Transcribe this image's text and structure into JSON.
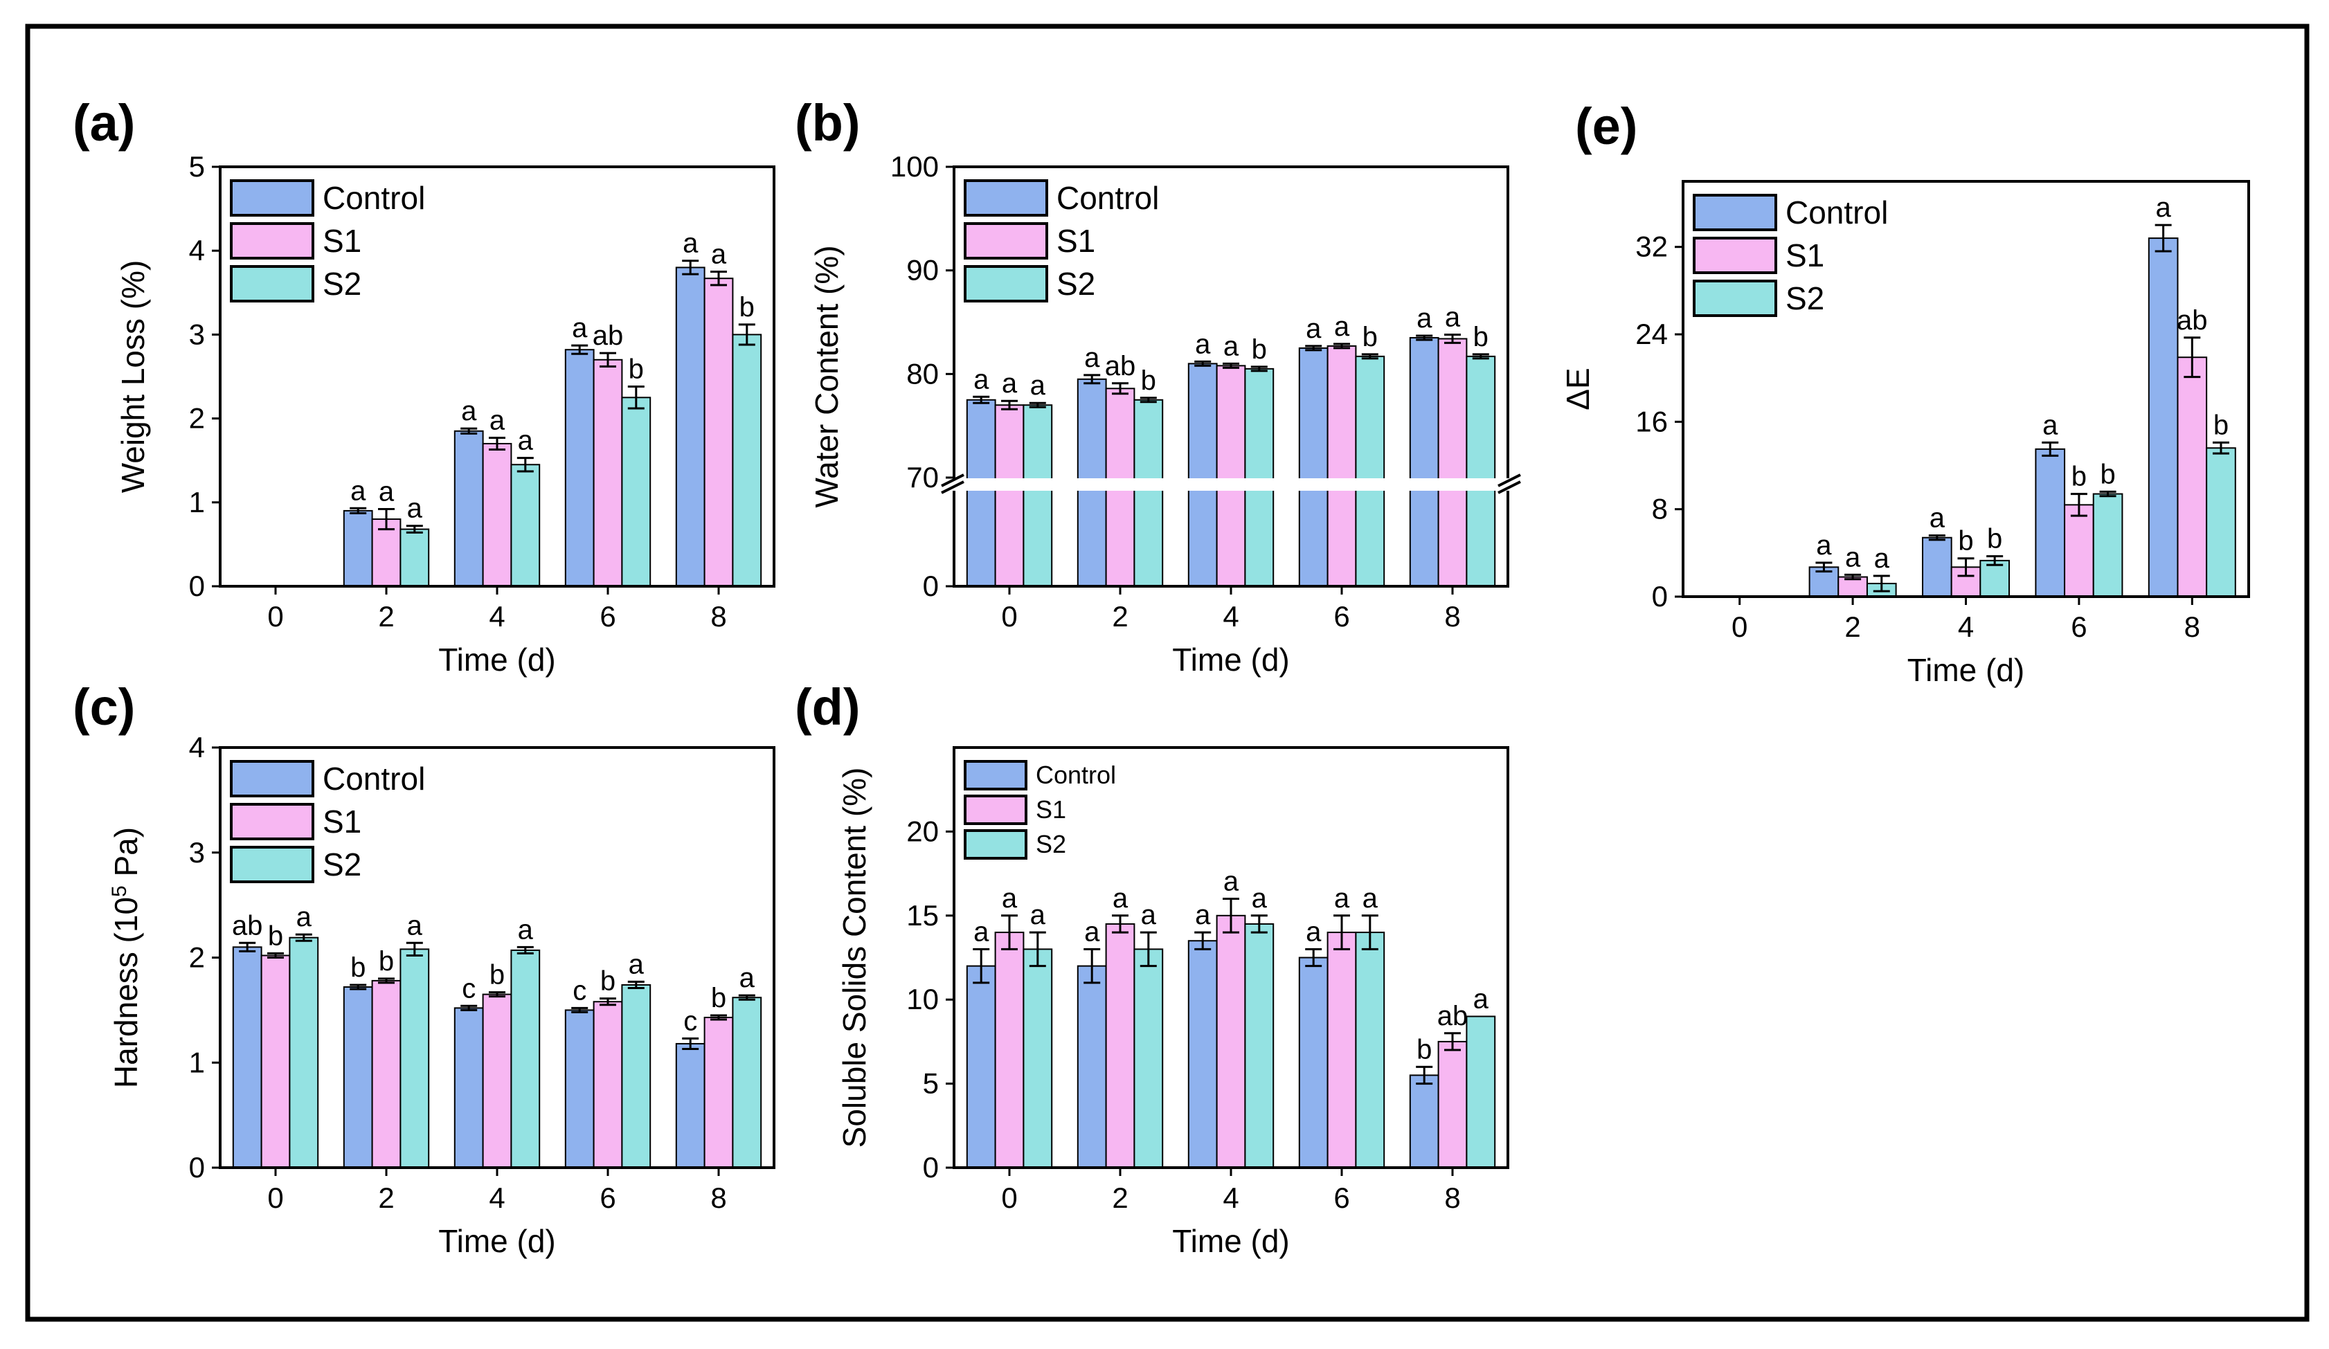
{
  "colors": {
    "control": "#8fb2ee",
    "s1": "#f7b7f2",
    "s2": "#94e2e2",
    "frame": "#000000",
    "background": "#ffffff"
  },
  "chart_data": [
    {
      "id": "a",
      "panel_label": "(a)",
      "type": "bar",
      "xlabel": "Time (d)",
      "ylabel": "Weight Loss (%)",
      "ylim": [
        0,
        5
      ],
      "y_ticks": [
        "0",
        "1",
        "2",
        "3",
        "4",
        "5"
      ],
      "categories": [
        "0",
        "2",
        "4",
        "6",
        "8"
      ],
      "legend_position": "top-left",
      "series": [
        {
          "name": "Control",
          "color_key": "control",
          "values": [
            0,
            0.9,
            1.85,
            2.82,
            3.8
          ],
          "errors": [
            0,
            0.03,
            0.03,
            0.05,
            0.08
          ],
          "letters": [
            "",
            "a",
            "a",
            "a",
            "a"
          ]
        },
        {
          "name": "S1",
          "color_key": "s1",
          "values": [
            0,
            0.8,
            1.7,
            2.7,
            3.67
          ],
          "errors": [
            0,
            0.12,
            0.07,
            0.08,
            0.08
          ],
          "letters": [
            "",
            "a",
            "a",
            "ab",
            "a"
          ]
        },
        {
          "name": "S2",
          "color_key": "s2",
          "values": [
            0,
            0.68,
            1.45,
            2.25,
            3.0
          ],
          "errors": [
            0,
            0.04,
            0.08,
            0.13,
            0.12
          ],
          "letters": [
            "",
            "a",
            "a",
            "b",
            "b"
          ]
        }
      ]
    },
    {
      "id": "b",
      "panel_label": "(b)",
      "type": "bar",
      "xlabel": "Time (d)",
      "ylabel": "Water Content (%)",
      "y_ticks": [
        "0",
        "70",
        "80",
        "90",
        "100"
      ],
      "axis_break": "between 0 and 70",
      "categories": [
        "0",
        "2",
        "4",
        "6",
        "8"
      ],
      "legend_position": "top-left",
      "series": [
        {
          "name": "Control",
          "color_key": "control",
          "values": [
            77.5,
            79.5,
            81.0,
            82.5,
            83.5
          ],
          "errors": [
            0.3,
            0.4,
            0.2,
            0.2,
            0.2
          ],
          "letters": [
            "a",
            "a",
            "a",
            "a",
            "a"
          ]
        },
        {
          "name": "S1",
          "color_key": "s1",
          "values": [
            77.0,
            78.6,
            80.8,
            82.7,
            83.4
          ],
          "errors": [
            0.4,
            0.5,
            0.2,
            0.2,
            0.4
          ],
          "letters": [
            "a",
            "ab",
            "a",
            "a",
            "a"
          ]
        },
        {
          "name": "S2",
          "color_key": "s2",
          "values": [
            77.0,
            77.5,
            80.5,
            81.7,
            81.7
          ],
          "errors": [
            0.2,
            0.2,
            0.2,
            0.2,
            0.2
          ],
          "letters": [
            "a",
            "b",
            "b",
            "b",
            "b"
          ]
        }
      ]
    },
    {
      "id": "c",
      "panel_label": "(c)",
      "type": "bar",
      "xlabel": "Time (d)",
      "ylabel": "Hardness (10",
      "ylabel_superscript": "5",
      "ylabel_suffix": " Pa)",
      "ylim": [
        0,
        4
      ],
      "y_ticks": [
        "0",
        "1",
        "2",
        "3",
        "4"
      ],
      "categories": [
        "0",
        "2",
        "4",
        "6",
        "8"
      ],
      "legend_position": "top-left",
      "series": [
        {
          "name": "Control",
          "color_key": "control",
          "values": [
            2.1,
            1.72,
            1.52,
            1.5,
            1.18
          ],
          "errors": [
            0.04,
            0.02,
            0.02,
            0.02,
            0.05
          ],
          "letters": [
            "ab",
            "b",
            "c",
            "c",
            "c"
          ]
        },
        {
          "name": "S1",
          "color_key": "s1",
          "values": [
            2.02,
            1.78,
            1.65,
            1.58,
            1.43
          ],
          "errors": [
            0.02,
            0.02,
            0.02,
            0.03,
            0.02
          ],
          "letters": [
            "b",
            "b",
            "b",
            "b",
            "b"
          ]
        },
        {
          "name": "S2",
          "color_key": "s2",
          "values": [
            2.19,
            2.08,
            2.07,
            1.74,
            1.62
          ],
          "errors": [
            0.03,
            0.06,
            0.03,
            0.03,
            0.02
          ],
          "letters": [
            "a",
            "a",
            "a",
            "a",
            "a"
          ]
        }
      ]
    },
    {
      "id": "d",
      "panel_label": "(d)",
      "type": "bar",
      "xlabel": "Time (d)",
      "ylabel": "Soluble Solids Content (%)",
      "ylim": [
        0,
        25
      ],
      "y_ticks": [
        "0",
        "5",
        "10",
        "15",
        "20"
      ],
      "categories": [
        "0",
        "2",
        "4",
        "6",
        "8"
      ],
      "legend_position": "top-left",
      "series": [
        {
          "name": "Control",
          "color_key": "control",
          "values": [
            12,
            12,
            13.5,
            12.5,
            5.5
          ],
          "errors": [
            1.0,
            1.0,
            0.5,
            0.5,
            0.5
          ],
          "letters": [
            "a",
            "a",
            "a",
            "a",
            "b"
          ]
        },
        {
          "name": "S1",
          "color_key": "s1",
          "values": [
            14,
            14.5,
            15,
            14,
            7.5
          ],
          "errors": [
            1.0,
            0.5,
            1.0,
            1.0,
            0.5
          ],
          "letters": [
            "a",
            "a",
            "a",
            "a",
            "ab"
          ]
        },
        {
          "name": "S2",
          "color_key": "s2",
          "values": [
            13,
            13,
            14.5,
            14,
            9
          ],
          "errors": [
            1.0,
            1.0,
            0.5,
            1.0,
            0
          ],
          "letters": [
            "a",
            "a",
            "a",
            "a",
            "a"
          ]
        }
      ]
    },
    {
      "id": "e",
      "panel_label": "(e)",
      "type": "bar",
      "xlabel": "Time (d)",
      "ylabel": "ΔE",
      "ylim": [
        0,
        38
      ],
      "y_ticks": [
        "0",
        "8",
        "16",
        "24",
        "32"
      ],
      "categories": [
        "0",
        "2",
        "4",
        "6",
        "8"
      ],
      "legend_position": "top-left",
      "series": [
        {
          "name": "Control",
          "color_key": "control",
          "values": [
            0,
            2.7,
            5.4,
            13.5,
            32.8
          ],
          "errors": [
            0,
            0.4,
            0.2,
            0.6,
            1.2
          ],
          "letters": [
            "",
            "a",
            "a",
            "a",
            "a"
          ]
        },
        {
          "name": "S1",
          "color_key": "s1",
          "values": [
            0,
            1.8,
            2.7,
            8.4,
            21.9
          ],
          "errors": [
            0,
            0.2,
            0.8,
            1.0,
            1.8
          ],
          "letters": [
            "",
            "a",
            "b",
            "b",
            "ab"
          ]
        },
        {
          "name": "S2",
          "color_key": "s2",
          "values": [
            0,
            1.2,
            3.3,
            9.4,
            13.6
          ],
          "errors": [
            0,
            0.7,
            0.4,
            0.2,
            0.5
          ],
          "letters": [
            "",
            "a",
            "b",
            "b",
            "b"
          ]
        }
      ]
    }
  ]
}
